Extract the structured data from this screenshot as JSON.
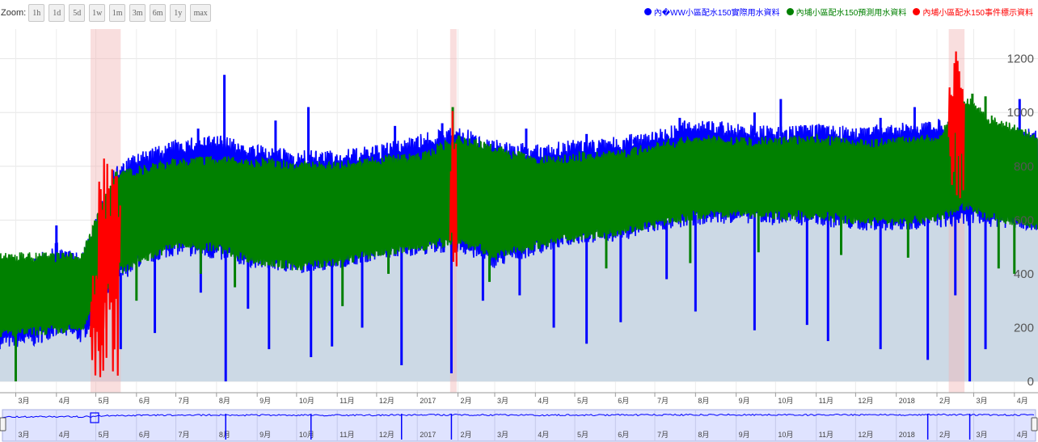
{
  "zoom": {
    "label": "Zoom:",
    "buttons": [
      "1h",
      "1d",
      "5d",
      "1w",
      "1m",
      "3m",
      "6m",
      "1y",
      "max"
    ]
  },
  "legend": [
    {
      "name": "內�WW小區配水150實際用水資料",
      "color": "#0000ff"
    },
    {
      "name": "內埔小區配水150預測用水資料",
      "color": "#008000"
    },
    {
      "name": "內埔小區配水150事件標示資料",
      "color": "#ff0000"
    }
  ],
  "chart_data": {
    "type": "line",
    "title": "",
    "xlabel": "",
    "ylabel": "",
    "ylim": [
      0,
      1250
    ],
    "y_ticks": [
      0,
      200,
      400,
      600,
      800,
      1000,
      1200
    ],
    "x_range": [
      "2016-02-18",
      "2018-04-19"
    ],
    "x_ticks": [
      {
        "date": "2016-03-01",
        "label": "3月"
      },
      {
        "date": "2016-04-01",
        "label": "4月"
      },
      {
        "date": "2016-05-01",
        "label": "5月"
      },
      {
        "date": "2016-06-01",
        "label": "6月"
      },
      {
        "date": "2016-07-01",
        "label": "7月"
      },
      {
        "date": "2016-08-01",
        "label": "8月"
      },
      {
        "date": "2016-09-01",
        "label": "9月"
      },
      {
        "date": "2016-10-01",
        "label": "10月"
      },
      {
        "date": "2016-11-01",
        "label": "11月"
      },
      {
        "date": "2016-12-01",
        "label": "12月"
      },
      {
        "date": "2017-01-01",
        "label": "2017"
      },
      {
        "date": "2017-02-01",
        "label": "2月"
      },
      {
        "date": "2017-03-01",
        "label": "3月"
      },
      {
        "date": "2017-04-01",
        "label": "4月"
      },
      {
        "date": "2017-05-01",
        "label": "5月"
      },
      {
        "date": "2017-06-01",
        "label": "6月"
      },
      {
        "date": "2017-07-01",
        "label": "7月"
      },
      {
        "date": "2017-08-01",
        "label": "8月"
      },
      {
        "date": "2017-09-01",
        "label": "9月"
      },
      {
        "date": "2017-10-01",
        "label": "10月"
      },
      {
        "date": "2017-11-01",
        "label": "11月"
      },
      {
        "date": "2017-12-01",
        "label": "12月"
      },
      {
        "date": "2018-01-01",
        "label": "2018"
      },
      {
        "date": "2018-02-01",
        "label": "2月"
      },
      {
        "date": "2018-03-01",
        "label": "3月"
      },
      {
        "date": "2018-04-01",
        "label": "4月"
      }
    ],
    "series": [
      {
        "name": "內埔小區配水150實際用水資料",
        "color": "#0000ff",
        "band": [
          [
            "2016-02-18",
            120,
            440
          ],
          [
            "2016-03-15",
            130,
            460
          ],
          [
            "2016-04-01",
            170,
            520
          ],
          [
            "2016-04-20",
            140,
            470
          ],
          [
            "2016-05-15",
            340,
            800
          ],
          [
            "2016-06-01",
            420,
            850
          ],
          [
            "2016-07-01",
            470,
            900
          ],
          [
            "2016-08-01",
            450,
            920
          ],
          [
            "2016-09-01",
            420,
            880
          ],
          [
            "2016-10-01",
            400,
            860
          ],
          [
            "2016-11-01",
            420,
            860
          ],
          [
            "2016-12-01",
            450,
            880
          ],
          [
            "2017-01-01",
            470,
            920
          ],
          [
            "2017-02-01",
            480,
            950
          ],
          [
            "2017-03-01",
            420,
            900
          ],
          [
            "2017-04-01",
            470,
            880
          ],
          [
            "2017-05-01",
            510,
            900
          ],
          [
            "2017-06-01",
            520,
            910
          ],
          [
            "2017-07-01",
            550,
            940
          ],
          [
            "2017-08-01",
            580,
            980
          ],
          [
            "2017-09-01",
            590,
            960
          ],
          [
            "2017-10-01",
            580,
            950
          ],
          [
            "2017-11-01",
            580,
            960
          ],
          [
            "2017-12-01",
            560,
            950
          ],
          [
            "2018-01-01",
            560,
            960
          ],
          [
            "2018-02-01",
            570,
            980
          ],
          [
            "2018-03-01",
            580,
            960
          ],
          [
            "2018-04-19",
            560,
            940
          ]
        ],
        "spikes_up": [
          [
            "2016-04-01",
            580
          ],
          [
            "2016-06-20",
            840
          ],
          [
            "2016-07-18",
            940
          ],
          [
            "2016-08-07",
            1140
          ],
          [
            "2016-09-15",
            970
          ],
          [
            "2016-10-10",
            1020
          ],
          [
            "2016-12-15",
            950
          ],
          [
            "2017-01-20",
            960
          ],
          [
            "2017-03-25",
            940
          ],
          [
            "2017-05-10",
            920
          ],
          [
            "2017-06-15",
            900
          ],
          [
            "2017-07-20",
            980
          ],
          [
            "2017-08-10",
            960
          ],
          [
            "2017-09-15",
            1000
          ],
          [
            "2017-10-05",
            1050
          ],
          [
            "2017-12-20",
            980
          ],
          [
            "2018-01-15",
            1020
          ],
          [
            "2018-03-05",
            1000
          ],
          [
            "2018-04-05",
            1050
          ]
        ],
        "spikes_down": [
          [
            "2016-05-20",
            120
          ],
          [
            "2016-06-15",
            180
          ],
          [
            "2016-07-20",
            330
          ],
          [
            "2016-08-08",
            0
          ],
          [
            "2016-08-25",
            270
          ],
          [
            "2016-09-10",
            120
          ],
          [
            "2016-10-12",
            90
          ],
          [
            "2016-10-28",
            130
          ],
          [
            "2016-11-20",
            200
          ],
          [
            "2016-12-20",
            60
          ],
          [
            "2017-01-27",
            30
          ],
          [
            "2017-02-20",
            300
          ],
          [
            "2017-03-20",
            320
          ],
          [
            "2017-04-15",
            200
          ],
          [
            "2017-05-10",
            140
          ],
          [
            "2017-06-05",
            220
          ],
          [
            "2017-07-10",
            380
          ],
          [
            "2017-08-01",
            260
          ],
          [
            "2017-09-15",
            190
          ],
          [
            "2017-10-25",
            210
          ],
          [
            "2017-11-10",
            150
          ],
          [
            "2017-12-20",
            120
          ],
          [
            "2018-01-25",
            80
          ],
          [
            "2018-02-15",
            320
          ],
          [
            "2018-02-26",
            0
          ],
          [
            "2018-03-10",
            120
          ]
        ]
      },
      {
        "name": "內埔小區配水150預測用水資料",
        "color": "#008000",
        "band": [
          [
            "2016-02-18",
            160,
            480
          ],
          [
            "2016-04-20",
            180,
            480
          ],
          [
            "2016-05-15",
            380,
            780
          ],
          [
            "2016-06-01",
            430,
            800
          ],
          [
            "2016-07-01",
            490,
            830
          ],
          [
            "2016-08-01",
            480,
            840
          ],
          [
            "2016-09-01",
            430,
            830
          ],
          [
            "2016-10-01",
            410,
            820
          ],
          [
            "2016-11-01",
            430,
            820
          ],
          [
            "2016-12-01",
            460,
            840
          ],
          [
            "2017-01-01",
            480,
            850
          ],
          [
            "2017-02-01",
            510,
            920
          ],
          [
            "2017-03-01",
            450,
            880
          ],
          [
            "2017-04-01",
            490,
            840
          ],
          [
            "2017-05-01",
            520,
            850
          ],
          [
            "2017-06-01",
            540,
            860
          ],
          [
            "2017-07-01",
            570,
            890
          ],
          [
            "2017-08-01",
            600,
            920
          ],
          [
            "2017-09-01",
            610,
            910
          ],
          [
            "2017-10-01",
            600,
            910
          ],
          [
            "2017-11-01",
            600,
            920
          ],
          [
            "2017-12-01",
            580,
            900
          ],
          [
            "2018-01-01",
            580,
            910
          ],
          [
            "2018-02-01",
            590,
            920
          ],
          [
            "2018-02-25",
            640,
            1060
          ],
          [
            "2018-03-10",
            600,
            1000
          ],
          [
            "2018-04-19",
            560,
            920
          ]
        ],
        "spikes_up": [
          [
            "2017-01-28",
            1020
          ],
          [
            "2018-02-28",
            1070
          ],
          [
            "2018-03-10",
            1060
          ]
        ],
        "spikes_down": [
          [
            "2016-03-01",
            0
          ],
          [
            "2016-06-01",
            300
          ],
          [
            "2016-07-20",
            400
          ],
          [
            "2016-08-15",
            350
          ],
          [
            "2016-09-20",
            420
          ],
          [
            "2016-11-05",
            280
          ],
          [
            "2016-12-10",
            400
          ],
          [
            "2017-02-25",
            370
          ],
          [
            "2017-05-25",
            420
          ],
          [
            "2017-07-28",
            440
          ],
          [
            "2017-09-18",
            480
          ],
          [
            "2017-11-20",
            470
          ],
          [
            "2018-01-10",
            460
          ],
          [
            "2018-03-20",
            420
          ],
          [
            "2018-04-01",
            400
          ]
        ]
      },
      {
        "name": "內埔小區配水150事件標示資料",
        "color": "#ff0000",
        "segments": [
          {
            "start": "2016-04-27",
            "end": "2016-05-08",
            "min": 10,
            "max": 410
          },
          {
            "start": "2016-05-03",
            "end": "2016-05-20",
            "min": 0,
            "max": 890
          },
          {
            "start": "2017-01-26",
            "end": "2017-01-31",
            "min": 210,
            "max": 1060
          },
          {
            "start": "2018-02-10",
            "end": "2018-02-22",
            "min": 640,
            "max": 1240
          }
        ]
      }
    ],
    "event_bands": [
      [
        "2016-04-27",
        "2016-05-20"
      ],
      [
        "2017-01-26",
        "2017-01-31"
      ],
      [
        "2018-02-10",
        "2018-02-22"
      ]
    ]
  }
}
